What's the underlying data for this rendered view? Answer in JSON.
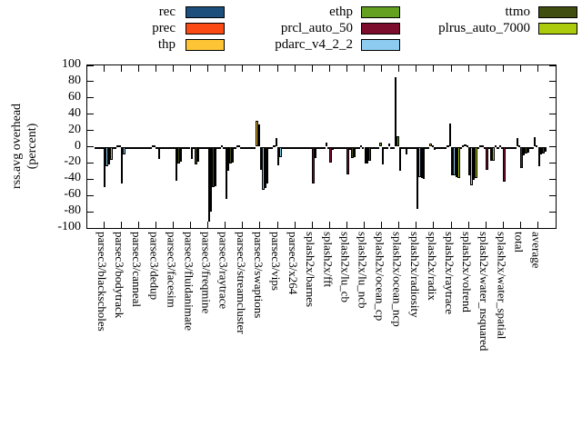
{
  "legend": {
    "entries": [
      {
        "label": "rec",
        "color": "#1d4f7c",
        "col": 0,
        "row": 0
      },
      {
        "label": "prec",
        "color": "#fb4a14",
        "col": 0,
        "row": 1
      },
      {
        "label": "thp",
        "color": "#fdc536",
        "col": 0,
        "row": 2
      },
      {
        "label": "ethp",
        "color": "#64a121",
        "col": 1,
        "row": 0
      },
      {
        "label": "prcl_auto_50",
        "color": "#7d0d2d",
        "col": 1,
        "row": 1
      },
      {
        "label": "pdarc_v4_2_2",
        "color": "#8ecbf0",
        "col": 1,
        "row": 2
      },
      {
        "label": "ttmo",
        "color": "#404e10",
        "col": 2,
        "row": 0
      },
      {
        "label": "plrus_auto_7000",
        "color": "#abcb0c",
        "col": 2,
        "row": 1
      }
    ]
  },
  "chart_data": {
    "type": "bar",
    "title": "",
    "ylabel_line1": "rss.avg overhead",
    "ylabel_line2": "(percent)",
    "ylim": [
      -100,
      100
    ],
    "ytick_step": 20,
    "grid": false,
    "legend_position": "top",
    "categories": [
      "parsec3/blackscholes",
      "parsec3/bodytrack",
      "parsec3/canneal",
      "parsec3/dedup",
      "parsec3/facesim",
      "parsec3/fluidanimate",
      "parsec3/freqmine",
      "parsec3/raytrace",
      "parsec3/streamcluster",
      "parsec3/swaptions",
      "parsec3/vips",
      "parsec3/x264",
      "splash2x/barnes",
      "splash2x/fft",
      "splash2x/lu_cb",
      "splash2x/lu_ncb",
      "splash2x/ocean_cp",
      "splash2x/ocean_ncp",
      "splash2x/radiosity",
      "splash2x/radix",
      "splash2x/raytrace",
      "splash2x/volrend",
      "splash2x/water_nsquared",
      "splash2x/water_spatial",
      "total",
      "average"
    ],
    "series": [
      {
        "name": "rec",
        "color": "#1d4f7c",
        "values": [
          0,
          0,
          0,
          0,
          0,
          0,
          -1,
          0,
          0,
          0,
          0,
          0,
          0,
          0,
          0,
          0,
          0,
          -2,
          0,
          0,
          0,
          0,
          0,
          1,
          0,
          0
        ]
      },
      {
        "name": "prec",
        "color": "#fb4a14",
        "values": [
          -1,
          -1,
          -1,
          -2,
          0,
          -1,
          -2,
          -1,
          1,
          -1,
          -1,
          -1,
          -1,
          -1,
          -1,
          -1,
          -1,
          -3,
          -1,
          -1,
          -1,
          1,
          1,
          -1,
          -1,
          -1
        ]
      },
      {
        "name": "thp",
        "color": "#fdc536",
        "values": [
          -1,
          1,
          -1,
          1,
          -1,
          -2,
          -2,
          2,
          2,
          32,
          2,
          -2,
          -2,
          5,
          -1,
          1,
          -2,
          85,
          -2,
          4,
          2,
          3,
          2,
          1,
          11,
          12
        ]
      },
      {
        "name": "ethp",
        "color": "#64a121",
        "values": [
          -1,
          2,
          -1,
          1,
          -1,
          -2,
          -2,
          -1,
          -1,
          27,
          11,
          -2,
          -2,
          -1,
          -1,
          -1,
          5,
          13,
          -2,
          1,
          28,
          1,
          -1,
          -1,
          1,
          2
        ]
      },
      {
        "name": "prcl_auto_50",
        "color": "#7d0d2d",
        "values": [
          -50,
          -45,
          -2,
          -3,
          -2,
          -15,
          -92,
          -64,
          -3,
          -28,
          -23,
          -2,
          -45,
          -20,
          -34,
          -21,
          -22,
          -30,
          -76,
          -4,
          -35,
          -35,
          -28,
          -43,
          -26,
          -24
        ]
      },
      {
        "name": "pdarc_v4_2_2",
        "color": "#8ecbf0",
        "values": [
          -24,
          -9,
          -2,
          -15,
          -42,
          -2,
          -80,
          -30,
          -3,
          -53,
          -13,
          -3,
          -14,
          -4,
          -4,
          -21,
          -2,
          -3,
          -37,
          -2,
          -35,
          -48,
          -3,
          -2,
          -11,
          -10
        ]
      },
      {
        "name": "ttmo",
        "color": "#404e10",
        "values": [
          -22,
          -2,
          -1,
          -2,
          -21,
          -22,
          -50,
          -21,
          -2,
          -51,
          -3,
          -2,
          -3,
          -2,
          -14,
          -17,
          -2,
          -3,
          -39,
          -1,
          -37,
          -41,
          -17,
          -2,
          -8,
          -8
        ]
      },
      {
        "name": "plrus_auto_7000",
        "color": "#abcb0c",
        "values": [
          -16,
          -2,
          -1,
          -2,
          -18,
          -18,
          -49,
          -19,
          -2,
          -45,
          -3,
          -2,
          -3,
          -2,
          -13,
          -3,
          4,
          -9,
          -40,
          -2,
          -38,
          -39,
          -17,
          -2,
          -7,
          -6
        ]
      }
    ]
  }
}
